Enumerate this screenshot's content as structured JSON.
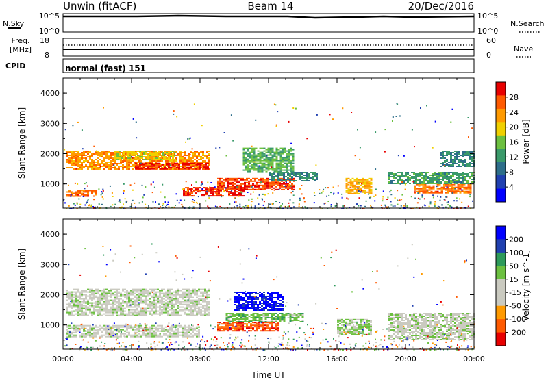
{
  "header": {
    "left_title": "Unwin (fitACF)",
    "center_title": "Beam 14",
    "right_title": "20/Dec/2016"
  },
  "strips": {
    "nsky": {
      "label": "N.Sky",
      "ticks_left": [
        "10^5",
        "10^0"
      ],
      "right_label": "N.Search",
      "ticks_right": [
        "10^5",
        "10^0"
      ]
    },
    "freq": {
      "label_line1": "Freq.",
      "label_line2": "[MHz]",
      "ticks_left": [
        "18",
        "8"
      ],
      "right_label": "Nave",
      "ticks_right": [
        "60",
        "0"
      ]
    },
    "cpid": {
      "label": "CPID",
      "mode_text": "normal (fast) 151"
    }
  },
  "x_axis": {
    "label": "Time UT",
    "ticks": [
      "00:00",
      "04:00",
      "08:00",
      "12:00",
      "16:00",
      "20:00",
      "00:00"
    ]
  },
  "colors": {
    "power_scale": [
      "#0000ff",
      "#2040b0",
      "#2d6e8a",
      "#3a9a6a",
      "#6cc040",
      "#f0d000",
      "#ff9a00",
      "#ff5a00",
      "#e80000"
    ],
    "velocity_scale": [
      "#e80000",
      "#ff5a00",
      "#ff9a00",
      "#cacac0",
      "#cacac0",
      "#6cc040",
      "#2d9a5a",
      "#2040b0",
      "#0000ff"
    ]
  },
  "chart_data": [
    {
      "type": "heatmap",
      "title": "",
      "ylabel": "Slant Range [km]",
      "xlabel": "",
      "yticks": [
        "1000",
        "2000",
        "3000",
        "4000"
      ],
      "ylim": [
        200,
        4500
      ],
      "xlim_hours": [
        0,
        24
      ],
      "colorbar": {
        "label": "Power [dB]",
        "ticks": [
          "4",
          "8",
          "12",
          "16",
          "20",
          "24",
          "28"
        ],
        "range": [
          0,
          30
        ]
      },
      "echo_regions": [
        {
          "t0": 0.2,
          "t1": 8.5,
          "r0": 1500,
          "r1": 2100,
          "value": 22
        },
        {
          "t0": 4.2,
          "t1": 8.5,
          "r0": 1500,
          "r1": 1700,
          "value": 28
        },
        {
          "t0": 3.0,
          "t1": 6.5,
          "r0": 1800,
          "r1": 2100,
          "value": 18
        },
        {
          "t0": 0.2,
          "t1": 2.0,
          "r0": 600,
          "r1": 800,
          "value": 24
        },
        {
          "t0": 7.0,
          "t1": 10.5,
          "r0": 600,
          "r1": 900,
          "value": 27
        },
        {
          "t0": 9.0,
          "t1": 13.5,
          "r0": 800,
          "r1": 1200,
          "value": 26
        },
        {
          "t0": 12.0,
          "t1": 14.8,
          "r0": 1100,
          "r1": 1400,
          "value": 10
        },
        {
          "t0": 10.5,
          "t1": 13.5,
          "r0": 1400,
          "r1": 2200,
          "value": 14
        },
        {
          "t0": 16.5,
          "t1": 18.0,
          "r0": 700,
          "r1": 1200,
          "value": 20
        },
        {
          "t0": 20.5,
          "t1": 23.8,
          "r0": 700,
          "r1": 1000,
          "value": 24
        },
        {
          "t0": 19.0,
          "t1": 24.0,
          "r0": 1000,
          "r1": 1400,
          "value": 12
        },
        {
          "t0": 22.0,
          "t1": 24.0,
          "r0": 1600,
          "r1": 2100,
          "value": 10
        }
      ]
    },
    {
      "type": "heatmap",
      "title": "",
      "ylabel": "Slant Range [km]",
      "xlabel": "Time UT",
      "yticks": [
        "1000",
        "2000",
        "3000",
        "4000"
      ],
      "ylim": [
        200,
        4500
      ],
      "xlim_hours": [
        0,
        24
      ],
      "colorbar": {
        "label": "Velocity [m s^-1]",
        "ticks": [
          "200",
          "100",
          "50",
          "15",
          "-15",
          "-50",
          "-100",
          "-200"
        ],
        "range": [
          -250,
          250
        ]
      },
      "echo_regions": [
        {
          "t0": 0.2,
          "t1": 8.5,
          "r0": 1300,
          "r1": 2200,
          "value": 0
        },
        {
          "t0": 0.2,
          "t1": 8.0,
          "r0": 600,
          "r1": 1000,
          "value": 0
        },
        {
          "t0": 10.0,
          "t1": 12.8,
          "r0": 1500,
          "r1": 2100,
          "value": 220
        },
        {
          "t0": 9.5,
          "t1": 14.0,
          "r0": 1100,
          "r1": 1400,
          "value": 60
        },
        {
          "t0": 9.0,
          "t1": 12.5,
          "r0": 800,
          "r1": 1100,
          "value": -180
        },
        {
          "t0": 16.0,
          "t1": 18.0,
          "r0": 700,
          "r1": 1200,
          "value": 40
        },
        {
          "t0": 19.0,
          "t1": 24.0,
          "r0": 500,
          "r1": 1400,
          "value": 0
        }
      ]
    }
  ]
}
